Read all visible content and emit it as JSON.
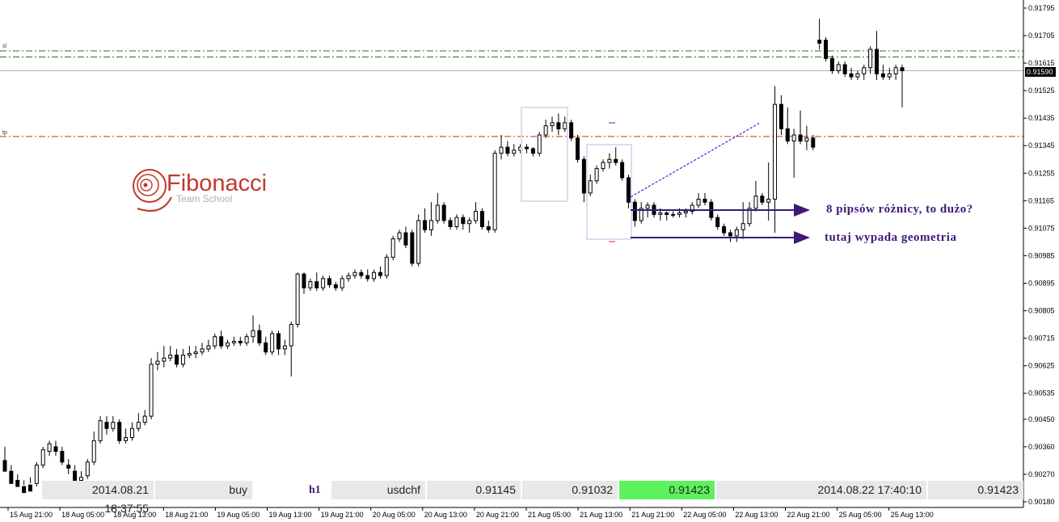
{
  "logo": {
    "title": "Fibonacci",
    "subtitle": "Team School"
  },
  "annotations": {
    "note1": "8 pipsów różnicy, to dużo?",
    "note2": "tutaj wypada geometria"
  },
  "level_labels": {
    "sl": "sl",
    "tp": "tp"
  },
  "current_price_label": "0.91590",
  "info_bar": {
    "open_time": "2014.08.21 18:37:55",
    "direction": "buy",
    "timeframe": "h1",
    "symbol": "usdchf",
    "open_price": "0.91145",
    "stop_loss": "0.91032",
    "take_profit": "0.91423",
    "close_time": "2014.08.22 17:40:10",
    "close_price": "0.91423"
  },
  "colors": {
    "sl_line": "#1f7a1f",
    "tp_line": "#cc3300",
    "arrow": "#3d1a78",
    "box": "#dcdcf2",
    "dotted": "#0000cc",
    "green_cell": "#5df25d"
  },
  "chart_data": {
    "type": "candlestick",
    "symbol": "usdchf",
    "timeframe": "h1",
    "y_ticks": [
      "0.91795",
      "0.91705",
      "0.91615",
      "0.91525",
      "0.91435",
      "0.91345",
      "0.91255",
      "0.91165",
      "0.91075",
      "0.90985",
      "0.90895",
      "0.90805",
      "0.90715",
      "0.90625",
      "0.90535",
      "0.90450",
      "0.90360",
      "0.90270",
      "0.90180"
    ],
    "ylim": [
      0.9018,
      0.91795
    ],
    "x_ticks": [
      "15 Aug 21:00",
      "18 Aug 05:00",
      "18 Aug 13:00",
      "18 Aug 21:00",
      "19 Aug 05:00",
      "19 Aug 13:00",
      "19 Aug 21:00",
      "20 Aug 05:00",
      "20 Aug 13:00",
      "20 Aug 21:00",
      "21 Aug 05:00",
      "21 Aug 13:00",
      "21 Aug 21:00",
      "22 Aug 05:00",
      "22 Aug 13:00",
      "22 Aug 21:00",
      "25 Aug 05:00",
      "25 Aug 13:00"
    ],
    "horizontal_levels": [
      {
        "name": "sl",
        "value": 0.91655
      },
      {
        "name": "sl",
        "value": 0.91635
      },
      {
        "name": "tp",
        "value": 0.91375
      },
      {
        "name": "current",
        "value": 0.9159
      }
    ],
    "candles": [
      [
        0.90315,
        0.9028,
        0.9036,
        0.903
      ],
      [
        0.9028,
        0.9024,
        0.903,
        0.9025
      ],
      [
        0.9025,
        0.9023,
        0.9027,
        0.9024
      ],
      [
        0.9023,
        0.9021,
        0.9025,
        0.90235
      ],
      [
        0.90235,
        0.90215,
        0.9026,
        0.9024
      ],
      [
        0.9024,
        0.903,
        0.9031,
        0.9023
      ],
      [
        0.903,
        0.9035,
        0.9036,
        0.9029
      ],
      [
        0.90345,
        0.9037,
        0.9038,
        0.9033
      ],
      [
        0.9036,
        0.90345,
        0.9038,
        0.9033
      ],
      [
        0.90345,
        0.9031,
        0.9036,
        0.903
      ],
      [
        0.903,
        0.9029,
        0.9032,
        0.9027
      ],
      [
        0.9028,
        0.9025,
        0.903,
        0.9024
      ],
      [
        0.9025,
        0.9026,
        0.9028,
        0.9023
      ],
      [
        0.90265,
        0.9031,
        0.9032,
        0.90255
      ],
      [
        0.9031,
        0.9038,
        0.9041,
        0.903
      ],
      [
        0.9038,
        0.90445,
        0.9046,
        0.9037
      ],
      [
        0.9044,
        0.9042,
        0.9046,
        0.904
      ],
      [
        0.9042,
        0.9044,
        0.9046,
        0.9041
      ],
      [
        0.9044,
        0.9038,
        0.9045,
        0.9037
      ],
      [
        0.9038,
        0.9039,
        0.9042,
        0.9037
      ],
      [
        0.9039,
        0.9042,
        0.9044,
        0.9038
      ],
      [
        0.9042,
        0.9044,
        0.9047,
        0.9041
      ],
      [
        0.9044,
        0.9046,
        0.9048,
        0.9043
      ],
      [
        0.9046,
        0.9063,
        0.9065,
        0.9045
      ],
      [
        0.9063,
        0.9064,
        0.9067,
        0.9061
      ],
      [
        0.9064,
        0.9065,
        0.9069,
        0.9062
      ],
      [
        0.9065,
        0.9066,
        0.9069,
        0.9064
      ],
      [
        0.9066,
        0.9063,
        0.9068,
        0.9062
      ],
      [
        0.9063,
        0.9066,
        0.9068,
        0.9062
      ],
      [
        0.9066,
        0.90665,
        0.9069,
        0.9065
      ],
      [
        0.90665,
        0.9067,
        0.9069,
        0.9065
      ],
      [
        0.9067,
        0.9068,
        0.907,
        0.9066
      ],
      [
        0.9068,
        0.9069,
        0.9071,
        0.9067
      ],
      [
        0.9069,
        0.9072,
        0.9073,
        0.9068
      ],
      [
        0.9072,
        0.9069,
        0.9074,
        0.9068
      ],
      [
        0.9069,
        0.907,
        0.9071,
        0.9068
      ],
      [
        0.907,
        0.90705,
        0.9072,
        0.9069
      ],
      [
        0.90705,
        0.907,
        0.9072,
        0.9069
      ],
      [
        0.907,
        0.9072,
        0.9073,
        0.9069
      ],
      [
        0.9072,
        0.9074,
        0.9079,
        0.907
      ],
      [
        0.9074,
        0.907,
        0.9076,
        0.9069
      ],
      [
        0.907,
        0.9067,
        0.9072,
        0.9066
      ],
      [
        0.9067,
        0.9073,
        0.9074,
        0.9066
      ],
      [
        0.9073,
        0.9068,
        0.9074,
        0.9066
      ],
      [
        0.9068,
        0.9069,
        0.9071,
        0.9066
      ],
      [
        0.9069,
        0.9076,
        0.9077,
        0.9059
      ],
      [
        0.9076,
        0.90925,
        0.9093,
        0.9075
      ],
      [
        0.90925,
        0.9088,
        0.9093,
        0.9086
      ],
      [
        0.9088,
        0.909,
        0.9091,
        0.9087
      ],
      [
        0.909,
        0.9088,
        0.9093,
        0.9087
      ],
      [
        0.9088,
        0.9091,
        0.9092,
        0.9087
      ],
      [
        0.9091,
        0.9089,
        0.9092,
        0.9088
      ],
      [
        0.9089,
        0.9088,
        0.909,
        0.9087
      ],
      [
        0.9088,
        0.9091,
        0.9092,
        0.9087
      ],
      [
        0.9091,
        0.9092,
        0.9093,
        0.909
      ],
      [
        0.9092,
        0.9093,
        0.9094,
        0.9091
      ],
      [
        0.9093,
        0.9092,
        0.9094,
        0.9091
      ],
      [
        0.9092,
        0.9091,
        0.9094,
        0.909
      ],
      [
        0.9091,
        0.9093,
        0.9094,
        0.909
      ],
      [
        0.9093,
        0.9092,
        0.9095,
        0.9091
      ],
      [
        0.9092,
        0.9098,
        0.9099,
        0.9091
      ],
      [
        0.9098,
        0.9104,
        0.9105,
        0.9097
      ],
      [
        0.9104,
        0.9106,
        0.9107,
        0.9103
      ],
      [
        0.9106,
        0.9102,
        0.9108,
        0.9101
      ],
      [
        0.9106,
        0.9096,
        0.9107,
        0.9095
      ],
      [
        0.9096,
        0.911,
        0.9112,
        0.9095
      ],
      [
        0.911,
        0.9107,
        0.9114,
        0.9106
      ],
      [
        0.9107,
        0.911,
        0.9116,
        0.9105
      ],
      [
        0.911,
        0.9115,
        0.9119,
        0.9109
      ],
      [
        0.9115,
        0.911,
        0.9116,
        0.9109
      ],
      [
        0.911,
        0.9108,
        0.9111,
        0.9107
      ],
      [
        0.9108,
        0.9111,
        0.9112,
        0.9107
      ],
      [
        0.9111,
        0.9109,
        0.9112,
        0.9107
      ],
      [
        0.9109,
        0.911,
        0.9111,
        0.9106
      ],
      [
        0.911,
        0.9113,
        0.9116,
        0.9109
      ],
      [
        0.9113,
        0.9108,
        0.9114,
        0.9107
      ],
      [
        0.9108,
        0.9107,
        0.911,
        0.9106
      ],
      [
        0.9107,
        0.9132,
        0.9133,
        0.9106
      ],
      [
        0.9132,
        0.9134,
        0.9138,
        0.913
      ],
      [
        0.9134,
        0.9132,
        0.9136,
        0.9131
      ],
      [
        0.9132,
        0.9133,
        0.9135,
        0.9131
      ],
      [
        0.9133,
        0.9134,
        0.9135,
        0.9132
      ],
      [
        0.9134,
        0.91335,
        0.9135,
        0.9132
      ],
      [
        0.91335,
        0.9132,
        0.9134,
        0.9131
      ],
      [
        0.9132,
        0.9138,
        0.9139,
        0.9131
      ],
      [
        0.9138,
        0.9141,
        0.9143,
        0.9137
      ],
      [
        0.9141,
        0.9142,
        0.9144,
        0.9139
      ],
      [
        0.9142,
        0.914,
        0.9145,
        0.9138
      ],
      [
        0.914,
        0.9142,
        0.9144,
        0.9139
      ],
      [
        0.9142,
        0.9137,
        0.9143,
        0.9136
      ],
      [
        0.9137,
        0.913,
        0.9138,
        0.9129
      ],
      [
        0.913,
        0.9119,
        0.9131,
        0.9116
      ],
      [
        0.9119,
        0.9123,
        0.9125,
        0.9118
      ],
      [
        0.9123,
        0.9127,
        0.9128,
        0.9122
      ],
      [
        0.9127,
        0.9129,
        0.913,
        0.9126
      ],
      [
        0.9129,
        0.913,
        0.9132,
        0.9127
      ],
      [
        0.913,
        0.9129,
        0.9134,
        0.9128
      ],
      [
        0.9129,
        0.9124,
        0.913,
        0.9123
      ],
      [
        0.9124,
        0.9116,
        0.9125,
        0.9114
      ],
      [
        0.9116,
        0.911,
        0.9117,
        0.9108
      ],
      [
        0.911,
        0.9114,
        0.9116,
        0.9109
      ],
      [
        0.9114,
        0.9115,
        0.9116,
        0.9111
      ],
      [
        0.9115,
        0.9112,
        0.9116,
        0.9111
      ],
      [
        0.9112,
        0.91125,
        0.9114,
        0.911
      ],
      [
        0.91125,
        0.9112,
        0.9113,
        0.911
      ],
      [
        0.9112,
        0.9112,
        0.9113,
        0.9111
      ],
      [
        0.9112,
        0.91125,
        0.9114,
        0.9111
      ],
      [
        0.91125,
        0.9113,
        0.9114,
        0.9111
      ],
      [
        0.9113,
        0.9115,
        0.9116,
        0.9112
      ],
      [
        0.9115,
        0.9117,
        0.9119,
        0.9114
      ],
      [
        0.9117,
        0.9116,
        0.9119,
        0.9115
      ],
      [
        0.9116,
        0.9111,
        0.9117,
        0.911
      ],
      [
        0.9111,
        0.9108,
        0.9112,
        0.9107
      ],
      [
        0.9108,
        0.9106,
        0.9109,
        0.9105
      ],
      [
        0.9106,
        0.9105,
        0.9107,
        0.9103
      ],
      [
        0.9105,
        0.9107,
        0.9108,
        0.9103
      ],
      [
        0.9107,
        0.9109,
        0.9116,
        0.9104
      ],
      [
        0.9109,
        0.9114,
        0.9116,
        0.9108
      ],
      [
        0.9114,
        0.9118,
        0.9123,
        0.9113
      ],
      [
        0.9118,
        0.9116,
        0.9119,
        0.9115
      ],
      [
        0.9116,
        0.9117,
        0.9129,
        0.911
      ],
      [
        0.9117,
        0.9148,
        0.9154,
        0.9106
      ],
      [
        0.9148,
        0.914,
        0.9151,
        0.9138
      ],
      [
        0.914,
        0.9136,
        0.9147,
        0.9135
      ],
      [
        0.9136,
        0.9138,
        0.914,
        0.9124
      ],
      [
        0.9138,
        0.9136,
        0.9146,
        0.9135
      ],
      [
        0.9136,
        0.9137,
        0.9141,
        0.9133
      ],
      [
        0.9137,
        0.9134,
        0.9138,
        0.9133
      ],
      [
        0.9169,
        0.9168,
        0.9176,
        0.9166
      ],
      [
        0.9169,
        0.9163,
        0.917,
        0.9162
      ],
      [
        0.9163,
        0.9159,
        0.9164,
        0.9158
      ],
      [
        0.9159,
        0.9161,
        0.9162,
        0.9158
      ],
      [
        0.9161,
        0.9158,
        0.9162,
        0.9157
      ],
      [
        0.9158,
        0.9157,
        0.916,
        0.9156
      ],
      [
        0.9157,
        0.9158,
        0.9159,
        0.9156
      ],
      [
        0.9158,
        0.916,
        0.9161,
        0.9156
      ],
      [
        0.916,
        0.9166,
        0.9167,
        0.9158
      ],
      [
        0.9166,
        0.9158,
        0.9172,
        0.9156
      ],
      [
        0.9158,
        0.9157,
        0.9161,
        0.9156
      ],
      [
        0.9157,
        0.9158,
        0.916,
        0.9156
      ],
      [
        0.9158,
        0.916,
        0.9161,
        0.9156
      ],
      [
        0.916,
        0.9159,
        0.9161,
        0.9147
      ]
    ]
  }
}
